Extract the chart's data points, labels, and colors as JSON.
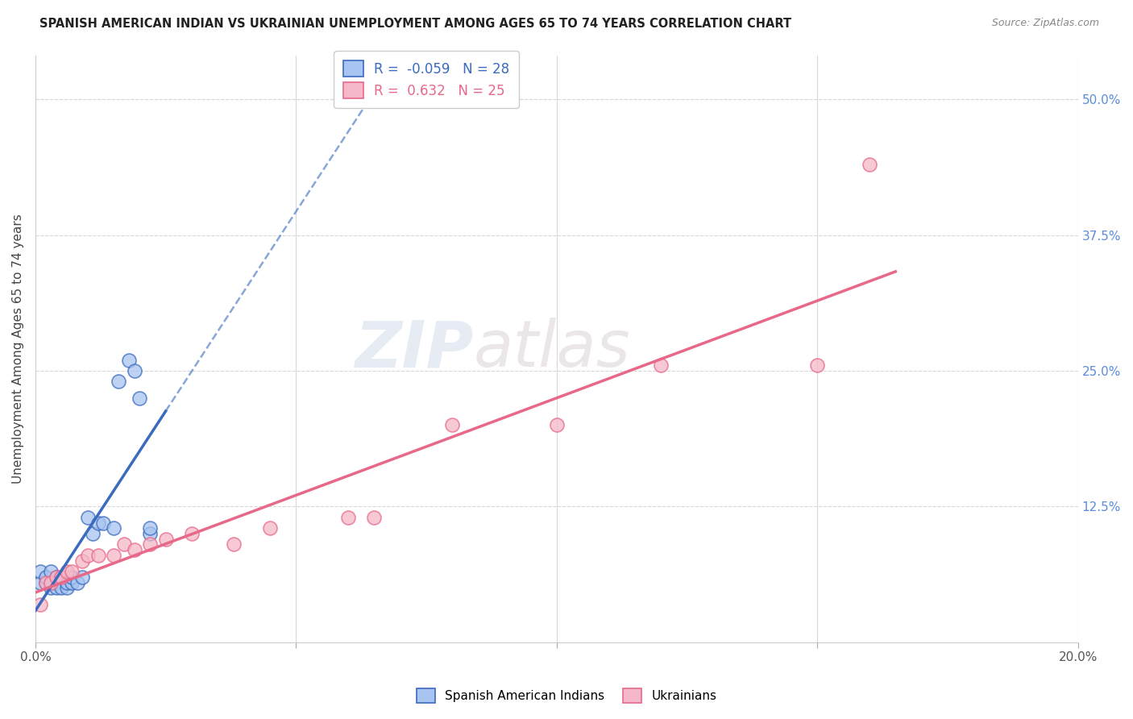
{
  "title": "SPANISH AMERICAN INDIAN VS UKRAINIAN UNEMPLOYMENT AMONG AGES 65 TO 74 YEARS CORRELATION CHART",
  "source": "Source: ZipAtlas.com",
  "ylabel": "Unemployment Among Ages 65 to 74 years",
  "xlim": [
    0.0,
    0.2
  ],
  "ylim": [
    0.0,
    0.54
  ],
  "background_color": "#ffffff",
  "grid_color": "#d8d8d8",
  "watermark_zip": "ZIP",
  "watermark_atlas": "atlas",
  "blue_x": [
    0.001,
    0.001,
    0.002,
    0.002,
    0.003,
    0.003,
    0.003,
    0.004,
    0.004,
    0.005,
    0.005,
    0.006,
    0.006,
    0.007,
    0.007,
    0.008,
    0.009,
    0.01,
    0.011,
    0.012,
    0.013,
    0.015,
    0.016,
    0.018,
    0.019,
    0.02,
    0.022,
    0.022
  ],
  "blue_y": [
    0.055,
    0.065,
    0.055,
    0.06,
    0.05,
    0.055,
    0.065,
    0.05,
    0.06,
    0.05,
    0.06,
    0.05,
    0.055,
    0.055,
    0.06,
    0.055,
    0.06,
    0.115,
    0.1,
    0.11,
    0.11,
    0.105,
    0.24,
    0.26,
    0.25,
    0.225,
    0.1,
    0.105
  ],
  "pink_x": [
    0.001,
    0.002,
    0.003,
    0.004,
    0.005,
    0.006,
    0.007,
    0.009,
    0.01,
    0.012,
    0.015,
    0.017,
    0.019,
    0.022,
    0.025,
    0.03,
    0.038,
    0.045,
    0.06,
    0.065,
    0.08,
    0.1,
    0.12,
    0.15,
    0.16
  ],
  "pink_y": [
    0.035,
    0.055,
    0.055,
    0.06,
    0.06,
    0.065,
    0.065,
    0.075,
    0.08,
    0.08,
    0.08,
    0.09,
    0.085,
    0.09,
    0.095,
    0.1,
    0.09,
    0.105,
    0.115,
    0.115,
    0.2,
    0.2,
    0.255,
    0.255,
    0.44
  ],
  "blue_R": -0.059,
  "blue_N": 28,
  "pink_R": 0.632,
  "pink_N": 25,
  "blue_line_color": "#3a6bbf",
  "blue_scatter_facecolor": "#a8c4f0",
  "pink_line_color": "#e8688a",
  "pink_scatter_facecolor": "#f5b8c8",
  "legend_label_blue": "Spanish American Indians",
  "legend_label_pink": "Ukrainians",
  "ytick_color": "#5b8dd9",
  "xtick_color": "#555555"
}
